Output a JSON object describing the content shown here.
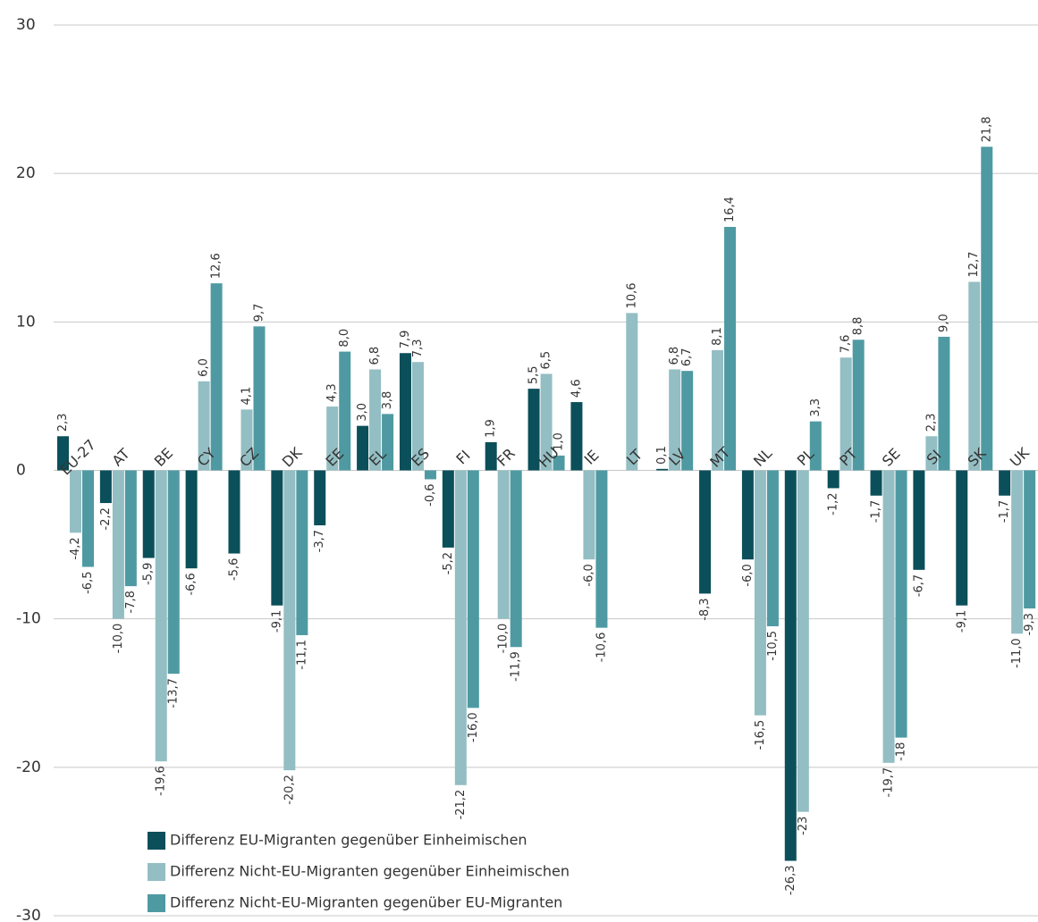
{
  "chart_data": {
    "type": "bar",
    "categories": [
      "EU-27",
      "AT",
      "BE",
      "CY",
      "CZ",
      "DK",
      "EE",
      "EL",
      "ES",
      "FI",
      "FR",
      "HU",
      "IE",
      "LT",
      "LV",
      "MT",
      "NL",
      "PL",
      "PT",
      "SE",
      "SI",
      "SK",
      "UK"
    ],
    "series": [
      {
        "name": "Differenz EU-Migranten gegenüber Einheimischen",
        "color": "#0b4f5a",
        "values": [
          2.3,
          -2.2,
          -5.9,
          -6.6,
          -5.6,
          -9.1,
          -3.7,
          3.0,
          7.9,
          -5.2,
          1.9,
          5.5,
          4.6,
          null,
          0.1,
          -8.3,
          -6.0,
          -26.3,
          -1.2,
          -1.7,
          -6.7,
          -9.1,
          -1.7
        ],
        "value_labels": [
          "2,3",
          "-2,2",
          "-5,9",
          "-6,6",
          "-5,6",
          "-9,1",
          "-3,7",
          "3,0",
          "7,9",
          "-5,2",
          "1,9",
          "5,5",
          "4,6",
          null,
          "0,1",
          "-8,3",
          "-6,0",
          "-26,3",
          "-1,2",
          "-1,7",
          "-6,7",
          "-9,1",
          "-1,7"
        ]
      },
      {
        "name": "Differenz Nicht-EU-Migranten gegenüber Einheimischen",
        "color": "#93bec3",
        "values": [
          -4.2,
          -10.0,
          -19.6,
          6.0,
          4.1,
          -20.2,
          4.3,
          6.8,
          7.3,
          -21.2,
          -10.0,
          6.5,
          -6.0,
          10.6,
          6.8,
          8.1,
          -16.5,
          -23,
          7.6,
          -19.7,
          2.3,
          12.7,
          -11.0
        ],
        "value_labels": [
          "-4,2",
          "-10,0",
          "-19,6",
          "6,0",
          "4,1",
          "-20,2",
          "4,3",
          "6,8",
          "7,3",
          "-21,2",
          "-10,0",
          "6,5",
          "-6,0",
          "10,6",
          "6,8",
          "8,1",
          "-16,5",
          "-23",
          "7,6",
          "-19,7",
          "2,3",
          "12,7",
          "-11,0"
        ]
      },
      {
        "name": "Differenz Nicht-EU-Migranten gegenüber EU-Migranten",
        "color": "#4f9aa2",
        "values": [
          -6.5,
          -7.8,
          -13.7,
          12.6,
          9.7,
          -11.1,
          8.0,
          3.8,
          -0.6,
          -16.0,
          -11.9,
          1.0,
          -10.6,
          null,
          6.7,
          16.4,
          -10.5,
          3.3,
          8.8,
          -18,
          9.0,
          21.8,
          -9.3
        ],
        "value_labels": [
          "-6,5",
          "-7,8",
          "-13,7",
          "12,6",
          "9,7",
          "-11,1",
          "8,0",
          "3,8",
          "-0,6",
          "-16,0",
          "-11,9",
          "1,0",
          "-10,6",
          null,
          "6,7",
          "16,4",
          "-10,5",
          "3,3",
          "8,8",
          "-18",
          "9,0",
          "21,8",
          "-9,3"
        ]
      }
    ],
    "ylim": [
      -30,
      30
    ],
    "yticks": [
      -30,
      -20,
      -10,
      0,
      10,
      20,
      30
    ],
    "grid": true
  }
}
